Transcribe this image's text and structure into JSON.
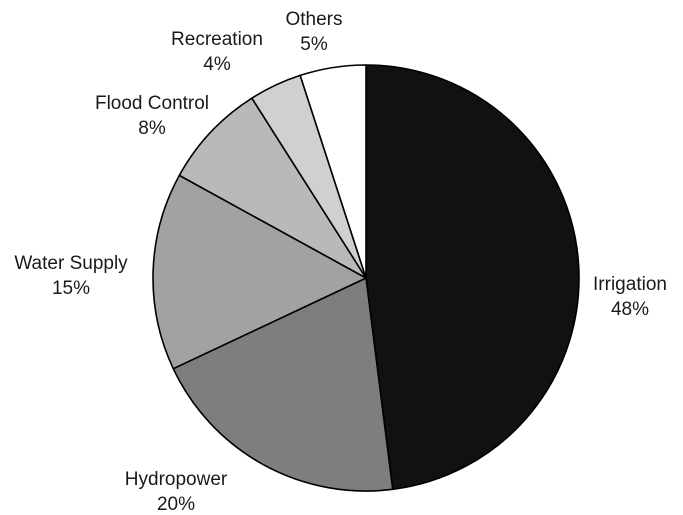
{
  "chart_data": {
    "type": "pie",
    "title": "",
    "start": "12 o'clock",
    "direction": "clockwise",
    "slices": [
      {
        "name": "Irrigation",
        "value": 48,
        "pct_label": "48%",
        "color": "#111111"
      },
      {
        "name": "Hydropower",
        "value": 20,
        "pct_label": "20%",
        "color": "#7e7e7e"
      },
      {
        "name": "Water Supply",
        "value": 15,
        "pct_label": "15%",
        "color": "#a2a2a2"
      },
      {
        "name": "Flood Control",
        "value": 8,
        "pct_label": "8%",
        "color": "#b9b9b9"
      },
      {
        "name": "Recreation",
        "value": 4,
        "pct_label": "4%",
        "color": "#d0d0d0"
      },
      {
        "name": "Others",
        "value": 5,
        "pct_label": "5%",
        "color": "#ffffff"
      }
    ]
  }
}
